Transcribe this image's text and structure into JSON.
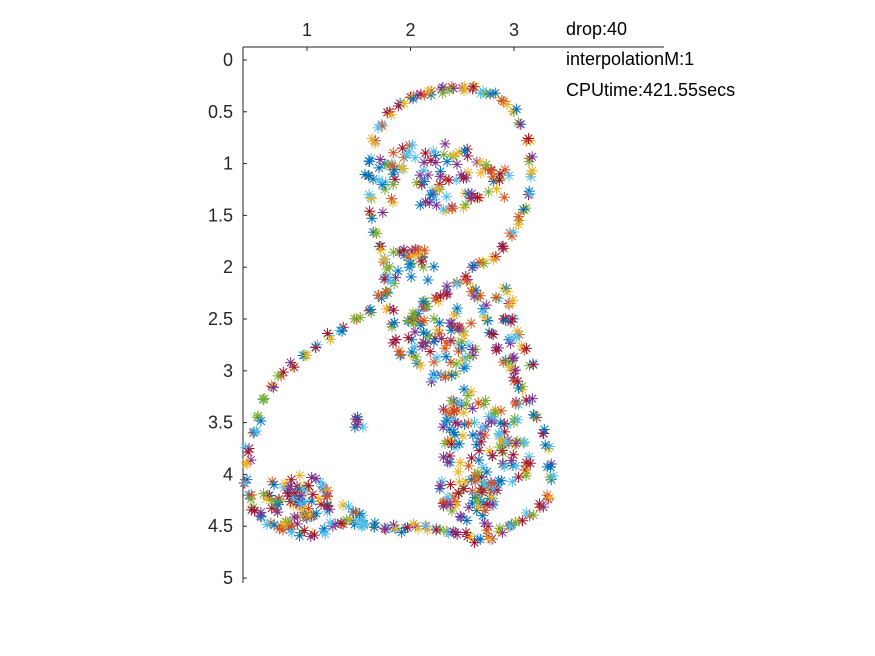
{
  "chart_data": {
    "type": "scatter",
    "title": "",
    "xlabel": "",
    "ylabel": "",
    "x_axis_location": "top",
    "y_axis_direction": "reverse",
    "xlim": [
      0.35,
      3.4
    ],
    "ylim": [
      0,
      5.1
    ],
    "xticks": [
      "1",
      "2",
      "3"
    ],
    "yticks": [
      "0",
      "0.5",
      "1",
      "1.5",
      "2",
      "2.5",
      "3",
      "3.5",
      "4",
      "4.5",
      "5"
    ],
    "marker": "asterisk",
    "grid": false,
    "legend": "none",
    "palette": [
      "#0072BD",
      "#D95319",
      "#EDB120",
      "#7E2F8E",
      "#77AC30",
      "#4DBEEE",
      "#A2142F"
    ],
    "annotations": [
      "drop:40",
      "interpolationM:1",
      "CPUtime:421.55secs"
    ],
    "outline_points": [
      [
        2.3,
        0.28
      ],
      [
        2.4,
        0.26
      ],
      [
        2.5,
        0.27
      ],
      [
        2.6,
        0.28
      ],
      [
        2.7,
        0.3
      ],
      [
        2.8,
        0.33
      ],
      [
        2.9,
        0.4
      ],
      [
        3.0,
        0.5
      ],
      [
        3.07,
        0.62
      ],
      [
        3.12,
        0.78
      ],
      [
        3.15,
        0.95
      ],
      [
        3.16,
        1.1
      ],
      [
        3.14,
        1.3
      ],
      [
        3.1,
        1.45
      ],
      [
        3.05,
        1.55
      ],
      [
        2.98,
        1.7
      ],
      [
        2.9,
        1.82
      ],
      [
        2.8,
        1.9
      ],
      [
        2.7,
        1.95
      ],
      [
        2.6,
        2.0
      ],
      [
        2.2,
        0.3
      ],
      [
        2.1,
        0.33
      ],
      [
        2.0,
        0.36
      ],
      [
        1.9,
        0.42
      ],
      [
        1.8,
        0.5
      ],
      [
        1.72,
        0.62
      ],
      [
        1.66,
        0.78
      ],
      [
        1.62,
        0.95
      ],
      [
        1.6,
        1.12
      ],
      [
        1.6,
        1.3
      ],
      [
        1.62,
        1.5
      ],
      [
        1.66,
        1.66
      ],
      [
        1.7,
        1.8
      ],
      [
        1.74,
        1.95
      ],
      [
        1.76,
        2.1
      ],
      [
        1.78,
        2.25
      ],
      [
        1.8,
        2.4
      ],
      [
        1.82,
        2.55
      ],
      [
        1.86,
        2.7
      ],
      [
        1.9,
        2.85
      ],
      [
        1.72,
        2.3
      ],
      [
        1.6,
        2.42
      ],
      [
        1.48,
        2.5
      ],
      [
        1.35,
        2.58
      ],
      [
        1.22,
        2.66
      ],
      [
        1.1,
        2.75
      ],
      [
        0.98,
        2.85
      ],
      [
        0.86,
        2.95
      ],
      [
        0.75,
        3.05
      ],
      [
        0.66,
        3.15
      ],
      [
        0.58,
        3.28
      ],
      [
        0.52,
        3.45
      ],
      [
        0.48,
        3.6
      ],
      [
        0.44,
        3.75
      ],
      [
        0.42,
        3.9
      ],
      [
        0.42,
        4.05
      ],
      [
        0.44,
        4.2
      ],
      [
        0.48,
        4.32
      ],
      [
        0.55,
        4.4
      ],
      [
        0.65,
        4.47
      ],
      [
        0.75,
        4.5
      ],
      [
        0.85,
        4.53
      ],
      [
        0.95,
        4.56
      ],
      [
        1.05,
        4.57
      ],
      [
        1.15,
        4.55
      ],
      [
        1.25,
        4.5
      ],
      [
        1.35,
        4.48
      ],
      [
        1.45,
        4.45
      ],
      [
        1.55,
        4.48
      ],
      [
        1.65,
        4.5
      ],
      [
        1.75,
        4.52
      ],
      [
        1.85,
        4.52
      ],
      [
        1.95,
        4.52
      ],
      [
        2.05,
        4.5
      ],
      [
        2.15,
        4.5
      ],
      [
        2.25,
        4.52
      ],
      [
        2.35,
        4.55
      ],
      [
        2.45,
        4.58
      ],
      [
        2.55,
        4.6
      ],
      [
        2.65,
        4.62
      ],
      [
        2.75,
        4.6
      ],
      [
        2.85,
        4.55
      ],
      [
        2.95,
        4.5
      ],
      [
        3.05,
        4.45
      ],
      [
        3.15,
        4.4
      ],
      [
        3.25,
        4.32
      ],
      [
        3.32,
        4.2
      ],
      [
        3.36,
        4.05
      ],
      [
        3.36,
        3.9
      ],
      [
        3.33,
        3.75
      ],
      [
        3.28,
        3.6
      ],
      [
        3.22,
        3.45
      ],
      [
        3.15,
        3.3
      ],
      [
        3.08,
        3.15
      ],
      [
        3.0,
        3.0
      ],
      [
        2.92,
        2.9
      ],
      [
        2.85,
        2.78
      ],
      [
        2.8,
        2.65
      ],
      [
        2.75,
        2.52
      ],
      [
        2.7,
        2.4
      ],
      [
        2.65,
        2.3
      ],
      [
        2.6,
        2.2
      ],
      [
        2.55,
        2.12
      ],
      [
        2.45,
        2.15
      ],
      [
        2.35,
        2.22
      ],
      [
        2.25,
        2.3
      ],
      [
        2.15,
        2.38
      ],
      [
        2.05,
        2.45
      ],
      [
        1.98,
        2.52
      ],
      [
        2.9,
        2.2
      ],
      [
        2.95,
        2.35
      ],
      [
        3.0,
        2.5
      ],
      [
        3.05,
        2.65
      ],
      [
        3.1,
        2.8
      ],
      [
        3.15,
        2.95
      ],
      [
        2.85,
        2.3
      ],
      [
        2.9,
        2.5
      ],
      [
        2.95,
        2.7
      ],
      [
        2.98,
        2.9
      ],
      [
        3.0,
        3.1
      ],
      [
        3.02,
        3.3
      ],
      [
        3.0,
        3.5
      ],
      [
        2.95,
        3.7
      ],
      [
        2.9,
        3.9
      ],
      [
        2.85,
        4.1
      ],
      [
        2.8,
        4.3
      ],
      [
        2.75,
        4.5
      ]
    ],
    "cluster_regions": [
      {
        "cx": 2.2,
        "cy": 1.0,
        "rx": 0.45,
        "ry": 0.22,
        "n": 45
      },
      {
        "cx": 2.35,
        "cy": 1.35,
        "rx": 0.3,
        "ry": 0.12,
        "n": 22
      },
      {
        "cx": 2.75,
        "cy": 1.2,
        "rx": 0.25,
        "ry": 0.25,
        "n": 20
      },
      {
        "cx": 1.75,
        "cy": 1.2,
        "rx": 0.12,
        "ry": 0.3,
        "n": 15
      },
      {
        "cx": 2.3,
        "cy": 2.7,
        "rx": 0.35,
        "ry": 0.45,
        "n": 80
      },
      {
        "cx": 2.6,
        "cy": 3.6,
        "rx": 0.35,
        "ry": 0.45,
        "n": 90
      },
      {
        "cx": 2.55,
        "cy": 4.2,
        "rx": 0.3,
        "ry": 0.25,
        "n": 55
      },
      {
        "cx": 0.9,
        "cy": 4.25,
        "rx": 0.35,
        "ry": 0.25,
        "n": 80
      },
      {
        "cx": 1.5,
        "cy": 3.5,
        "rx": 0.06,
        "ry": 0.1,
        "n": 6
      },
      {
        "cx": 1.45,
        "cy": 4.4,
        "rx": 0.15,
        "ry": 0.15,
        "n": 12
      },
      {
        "cx": 2.0,
        "cy": 2.0,
        "rx": 0.3,
        "ry": 0.2,
        "n": 30
      },
      {
        "cx": 3.05,
        "cy": 3.9,
        "rx": 0.12,
        "ry": 0.25,
        "n": 18
      }
    ]
  }
}
